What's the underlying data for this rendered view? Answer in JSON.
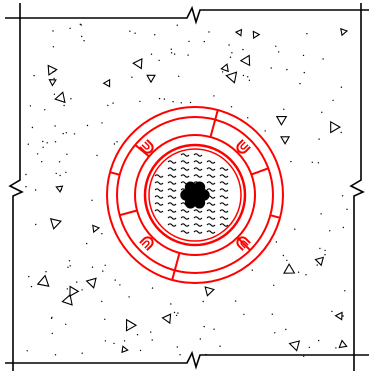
{
  "drawing": {
    "colors": {
      "background": "#ffffff",
      "outline": "#000000",
      "pipe": "#ff0000",
      "core": "#000000"
    },
    "concrete_slab": {
      "hatch": "concrete-stipple",
      "break_marks": [
        "top",
        "bottom",
        "left",
        "right"
      ]
    },
    "penetration": {
      "outer_ring_count": 4,
      "segment_dividers": 6,
      "anchor_hooks": 4,
      "inner_fill": "water-waves",
      "core_strand_count": 7
    }
  }
}
